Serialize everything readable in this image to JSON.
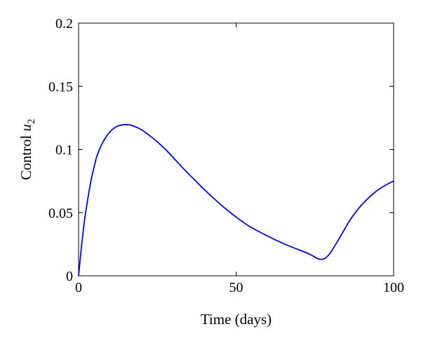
{
  "chart_data": {
    "type": "line",
    "title": "",
    "xlabel": "Time (days)",
    "ylabel_main": "Control ",
    "ylabel_var": "u",
    "ylabel_sub": "2",
    "xlim": [
      0,
      100
    ],
    "ylim": [
      0,
      0.2
    ],
    "x_ticks": [
      0,
      50,
      100
    ],
    "x_tick_labels": [
      "0",
      "50",
      "100"
    ],
    "y_ticks": [
      0,
      0.05,
      0.1,
      0.15,
      0.2
    ],
    "y_tick_labels": [
      "0",
      "0.05",
      "0.1",
      "0.15",
      "0.2"
    ],
    "grid": false,
    "series": [
      {
        "color": "#0000ff",
        "x": [
          0,
          1,
          2,
          3,
          4,
          5,
          6,
          8,
          10,
          12,
          14,
          16,
          18,
          20,
          22,
          25,
          28,
          31,
          34,
          37,
          40,
          43,
          46,
          50,
          54,
          58,
          62,
          66,
          70,
          73,
          75,
          76,
          77,
          78,
          79,
          80,
          82,
          84,
          86,
          88,
          90,
          92,
          94,
          96,
          98,
          100
        ],
        "y": [
          0,
          0.025,
          0.046,
          0.062,
          0.076,
          0.087,
          0.096,
          0.107,
          0.114,
          0.118,
          0.1195,
          0.1195,
          0.118,
          0.1155,
          0.112,
          0.106,
          0.099,
          0.091,
          0.083,
          0.0755,
          0.068,
          0.061,
          0.0545,
          0.0465,
          0.0395,
          0.034,
          0.029,
          0.0245,
          0.0205,
          0.0175,
          0.0148,
          0.0135,
          0.013,
          0.0135,
          0.0155,
          0.0185,
          0.0265,
          0.035,
          0.0435,
          0.0505,
          0.0565,
          0.0615,
          0.066,
          0.0695,
          0.0725,
          0.075
        ]
      }
    ]
  },
  "colors": {
    "series": "#0000ff",
    "axes": "#000000",
    "background": "#ffffff"
  }
}
